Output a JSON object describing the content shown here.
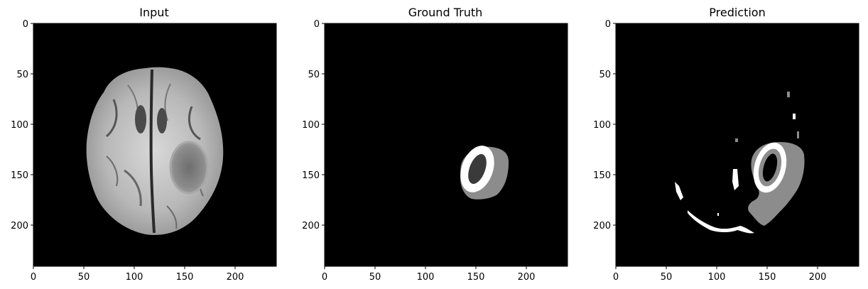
{
  "panels": [
    {
      "title": "Input",
      "kind": "grayscale-mri",
      "x_ticks": [
        "0",
        "50",
        "100",
        "150",
        "200"
      ],
      "y_ticks": [
        "0",
        "50",
        "100",
        "150",
        "200"
      ]
    },
    {
      "title": "Ground Truth",
      "kind": "segmentation-mask",
      "x_ticks": [
        "0",
        "50",
        "100",
        "150",
        "200"
      ],
      "y_ticks": [
        "0",
        "50",
        "100",
        "150",
        "200"
      ]
    },
    {
      "title": "Prediction",
      "kind": "segmentation-mask",
      "x_ticks": [
        "0",
        "50",
        "100",
        "150",
        "200"
      ],
      "y_ticks": [
        "0",
        "50",
        "100",
        "150",
        "200"
      ]
    }
  ],
  "colors": {
    "background": "#000000",
    "axis": "#000000",
    "mask_dark": "#3a3a3a",
    "mask_mid": "#8c8c8c",
    "mask_light": "#ffffff"
  }
}
